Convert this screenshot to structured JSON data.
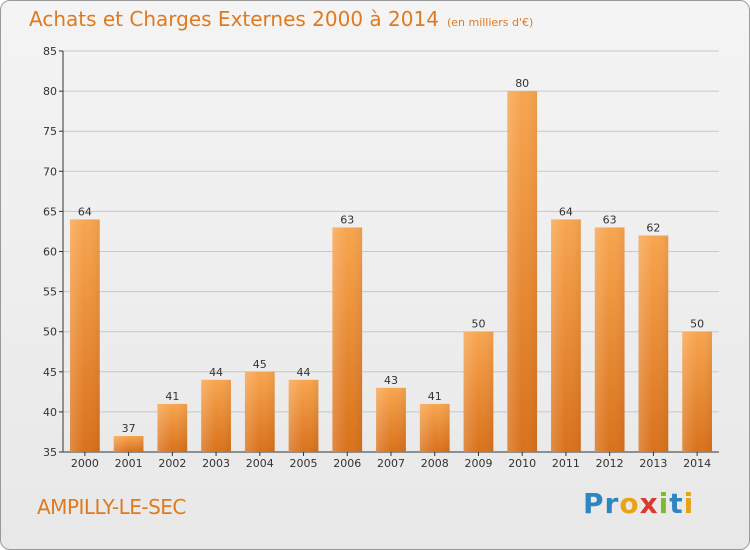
{
  "header": {
    "title": "Achats et Charges Externes 2000 à 2014",
    "unit": "(en milliers d'€)"
  },
  "footer": {
    "place": "AMPILLY-LE-SEC",
    "brand": "Proxiti"
  },
  "colors": {
    "bar_top": "#f8a54f",
    "bar_bottom": "#d9711b",
    "accent": "#e07a1f",
    "grid": "#c8c8c8",
    "axis": "#333333"
  },
  "chart_data": {
    "type": "bar",
    "title": "Achats et Charges Externes 2000 à 2014",
    "subtitle": "(en milliers d'€)",
    "xlabel": "",
    "ylabel": "",
    "categories": [
      "2000",
      "2001",
      "2002",
      "2003",
      "2004",
      "2005",
      "2006",
      "2007",
      "2008",
      "2009",
      "2010",
      "2011",
      "2012",
      "2013",
      "2014"
    ],
    "values": [
      64,
      37,
      41,
      44,
      45,
      44,
      63,
      43,
      41,
      50,
      80,
      64,
      63,
      62,
      50
    ],
    "ylim": [
      35,
      85
    ],
    "yticks": [
      35,
      40,
      45,
      50,
      55,
      60,
      65,
      70,
      75,
      80,
      85
    ],
    "grid": true,
    "legend": "none"
  }
}
